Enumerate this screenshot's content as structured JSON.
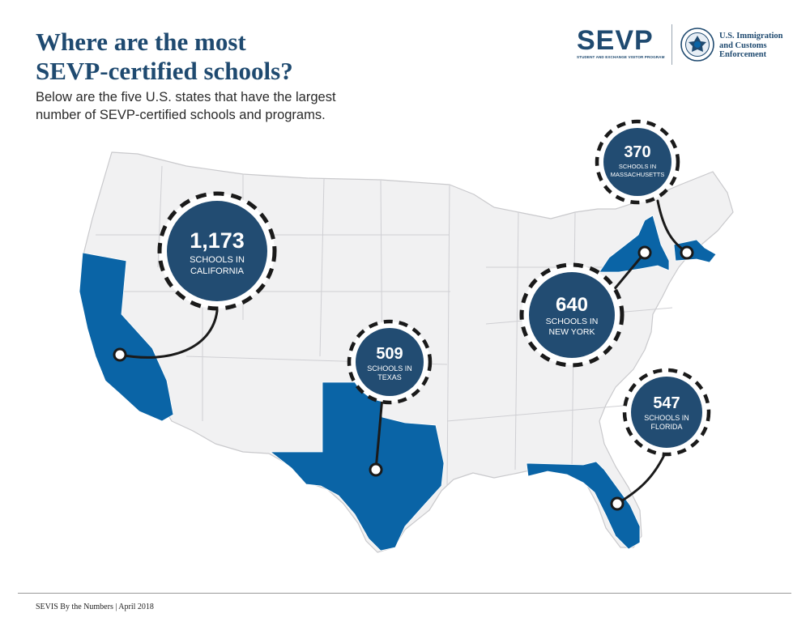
{
  "header": {
    "title_line1": "Where are the most",
    "title_line2": "SEVP-certified schools?",
    "subtitle_line1": "Below are the five U.S. states that have the largest",
    "subtitle_line2": "number of SEVP-certified schools and programs."
  },
  "logos": {
    "sevp_mark": "SEVP",
    "sevp_tagline": "STUDENT AND EXCHANGE VISITOR PROGRAM",
    "seal_icon": "dhs-seal-icon",
    "agency_line1": "U.S. Immigration",
    "agency_line2": "and Customs",
    "agency_line3": "Enforcement"
  },
  "colors": {
    "highlight_state": "#0a64a6",
    "bubble_fill": "#224c72",
    "map_fill": "#f1f1f2",
    "map_border": "#c9c9cc",
    "dash": "#1a1a1a",
    "title": "#1f4a70"
  },
  "states": [
    {
      "name": "California",
      "count": "1,173",
      "line1": "SCHOOLS IN",
      "line2": "CALIFORNIA"
    },
    {
      "name": "Texas",
      "count": "509",
      "line1": "SCHOOLS IN",
      "line2": "TEXAS"
    },
    {
      "name": "New York",
      "count": "640",
      "line1": "SCHOOLS IN",
      "line2": "NEW YORK"
    },
    {
      "name": "Massachusetts",
      "count": "370",
      "line1": "SCHOOLS IN",
      "line2": "MASSACHUSETTS"
    },
    {
      "name": "Florida",
      "count": "547",
      "line1": "SCHOOLS IN",
      "line2": "FLORIDA"
    }
  ],
  "footer": {
    "text": "SEVIS By the Numbers | April 2018"
  }
}
